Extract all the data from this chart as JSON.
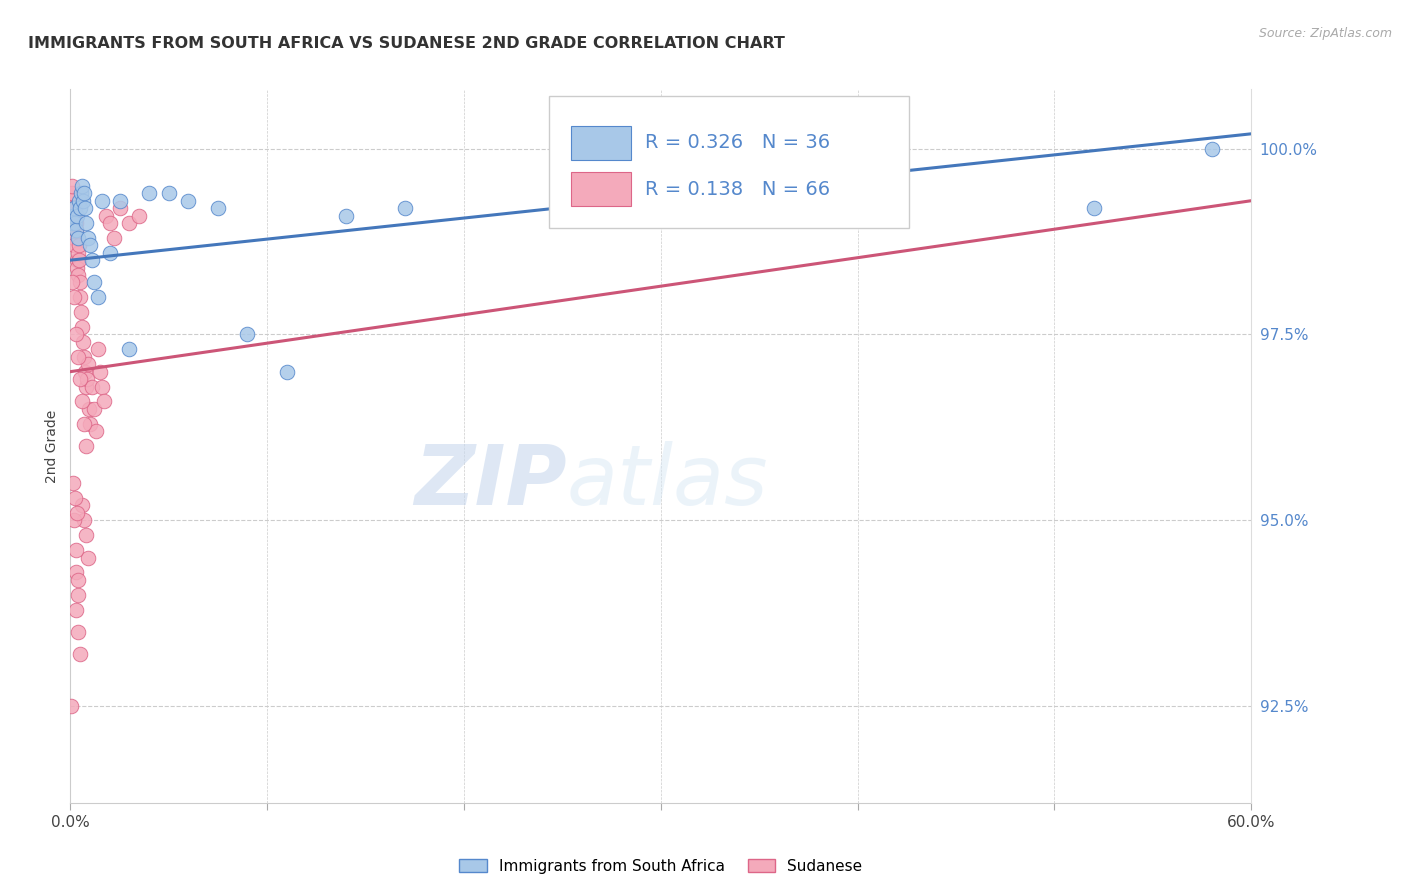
{
  "title": "IMMIGRANTS FROM SOUTH AFRICA VS SUDANESE 2ND GRADE CORRELATION CHART",
  "source": "Source: ZipAtlas.com",
  "ylabel": "2nd Grade",
  "ylabel_right_ticks": [
    92.5,
    95.0,
    97.5,
    100.0
  ],
  "ylabel_right_labels": [
    "92.5%",
    "95.0%",
    "97.5%",
    "100.0%"
  ],
  "xmin": 0.0,
  "xmax": 60.0,
  "ymin": 91.2,
  "ymax": 100.8,
  "blue_R": 0.326,
  "blue_N": 36,
  "pink_R": 0.138,
  "pink_N": 66,
  "blue_color": "#A8C8E8",
  "pink_color": "#F4AABB",
  "blue_edge_color": "#5588CC",
  "pink_edge_color": "#DD6688",
  "blue_line_color": "#4477BB",
  "pink_line_color": "#CC5577",
  "watermark_zip": "ZIP",
  "watermark_atlas": "atlas",
  "legend_label_blue": "Immigrants from South Africa",
  "legend_label_pink": "Sudanese",
  "blue_scatter_x": [
    0.1,
    0.15,
    0.2,
    0.25,
    0.3,
    0.35,
    0.4,
    0.45,
    0.5,
    0.55,
    0.6,
    0.65,
    0.7,
    0.75,
    0.8,
    0.9,
    1.0,
    1.1,
    1.2,
    1.4,
    1.6,
    2.0,
    2.5,
    3.0,
    4.0,
    5.0,
    6.0,
    7.5,
    9.0,
    11.0,
    14.0,
    17.0,
    25.0,
    32.0,
    52.0,
    58.0
  ],
  "blue_scatter_y": [
    99.0,
    99.1,
    99.2,
    99.0,
    98.9,
    99.1,
    98.8,
    99.3,
    99.2,
    99.4,
    99.5,
    99.3,
    99.4,
    99.2,
    99.0,
    98.8,
    98.7,
    98.5,
    98.2,
    98.0,
    99.3,
    98.6,
    99.3,
    97.3,
    99.4,
    99.4,
    99.3,
    99.2,
    97.5,
    97.0,
    99.1,
    99.2,
    99.3,
    99.3,
    99.2,
    100.0
  ],
  "pink_scatter_x": [
    0.05,
    0.08,
    0.1,
    0.12,
    0.15,
    0.18,
    0.2,
    0.22,
    0.25,
    0.28,
    0.3,
    0.32,
    0.35,
    0.38,
    0.4,
    0.42,
    0.45,
    0.48,
    0.5,
    0.55,
    0.6,
    0.65,
    0.7,
    0.75,
    0.8,
    0.85,
    0.9,
    0.95,
    1.0,
    1.1,
    1.2,
    1.3,
    1.4,
    1.5,
    1.6,
    1.7,
    1.8,
    2.0,
    2.2,
    2.5,
    3.0,
    3.5,
    0.1,
    0.2,
    0.3,
    0.4,
    0.5,
    0.6,
    0.7,
    0.8,
    0.6,
    0.7,
    0.8,
    0.9,
    0.3,
    0.4,
    0.3,
    0.4,
    0.5,
    0.2,
    0.3,
    0.4,
    0.15,
    0.25,
    0.35,
    0.05
  ],
  "pink_scatter_y": [
    99.3,
    99.4,
    99.5,
    99.2,
    99.0,
    98.8,
    98.7,
    99.1,
    99.2,
    98.9,
    99.0,
    98.5,
    98.4,
    98.3,
    98.6,
    98.7,
    98.5,
    98.2,
    98.0,
    97.8,
    97.6,
    97.4,
    97.2,
    97.0,
    96.8,
    96.9,
    97.1,
    96.5,
    96.3,
    96.8,
    96.5,
    96.2,
    97.3,
    97.0,
    96.8,
    96.6,
    99.1,
    99.0,
    98.8,
    99.2,
    99.0,
    99.1,
    98.2,
    98.0,
    97.5,
    97.2,
    96.9,
    96.6,
    96.3,
    96.0,
    95.2,
    95.0,
    94.8,
    94.5,
    94.3,
    94.0,
    93.8,
    93.5,
    93.2,
    95.0,
    94.6,
    94.2,
    95.5,
    95.3,
    95.1,
    92.5
  ],
  "blue_trend_x0": 0.0,
  "blue_trend_y0": 98.5,
  "blue_trend_x1": 60.0,
  "blue_trend_y1": 100.2,
  "pink_trend_x0": 0.0,
  "pink_trend_y0": 97.0,
  "pink_trend_x1": 60.0,
  "pink_trend_y1": 99.3
}
